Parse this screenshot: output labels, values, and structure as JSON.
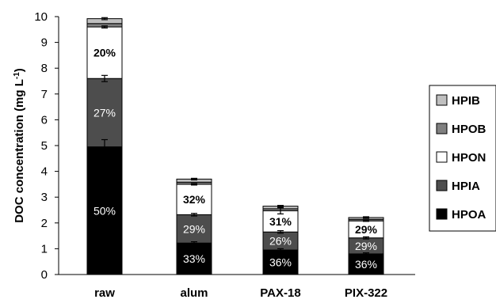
{
  "chart_data": {
    "type": "bar",
    "stacked": true,
    "title": "",
    "xlabel": "",
    "ylabel": "DOC concentration (mg L",
    "ylabel_superscript": "-1",
    "ylabel_close": ")",
    "ylim": [
      0,
      10
    ],
    "yticks": [
      "0",
      "1",
      "2",
      "3",
      "4",
      "5",
      "6",
      "7",
      "8",
      "9",
      "10"
    ],
    "grid": false,
    "legend_position": "right",
    "categories": [
      "raw",
      "alum",
      "PAX-18",
      "PIX-322"
    ],
    "series": [
      {
        "name": "HPOA",
        "color": "#000000",
        "values": [
          4.95,
          1.22,
          0.95,
          0.8
        ]
      },
      {
        "name": "HPIA",
        "color": "#4d4d4d",
        "values": [
          2.65,
          1.1,
          0.7,
          0.62
        ]
      },
      {
        "name": "HPON",
        "color": "#ffffff",
        "values": [
          2.0,
          1.18,
          0.82,
          0.66
        ]
      },
      {
        "name": "HPOB",
        "color": "#808080",
        "values": [
          0.13,
          0.08,
          0.08,
          0.06
        ]
      },
      {
        "name": "HPIB",
        "color": "#c0c0c0",
        "values": [
          0.19,
          0.12,
          0.1,
          0.07
        ]
      }
    ],
    "error_bars": [
      {
        "series": "HPOA",
        "values": [
          0.28,
          0.05,
          0.05,
          0.04
        ]
      },
      {
        "series": "HPIA",
        "values": [
          0.12,
          0.05,
          0.05,
          0.04
        ]
      },
      {
        "series": "HPON",
        "values": [
          0.04,
          0.03,
          0.12,
          0.02
        ]
      },
      {
        "series": "HPIB",
        "values": [
          0.04,
          0.03,
          0.03,
          0.03
        ]
      }
    ],
    "percent_labels": [
      {
        "category": "raw",
        "HPOA": "50%",
        "HPIA": "27%",
        "HPON": "20%"
      },
      {
        "category": "alum",
        "HPOA": "33%",
        "HPIA": "29%",
        "HPON": "32%"
      },
      {
        "category": "PAX-18",
        "HPOA": "36%",
        "HPIA": "26%",
        "HPON": "31%"
      },
      {
        "category": "PIX-322",
        "HPOA": "36%",
        "HPIA": "29%",
        "HPON": "29%"
      }
    ],
    "legend_order": [
      "HPIB",
      "HPOB",
      "HPON",
      "HPIA",
      "HPOA"
    ]
  }
}
